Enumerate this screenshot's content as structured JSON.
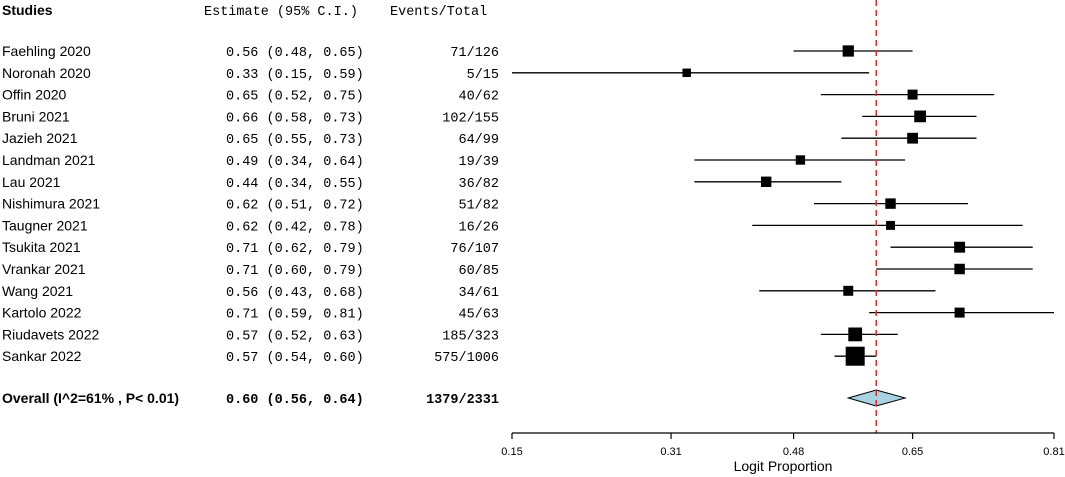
{
  "headers": {
    "studies": "Studies",
    "estimate": "Estimate (95% C.I.)",
    "events": "Events/Total"
  },
  "chart_data": {
    "type": "forest",
    "studies": [
      {
        "label": "Faehling 2020",
        "ci_text": "0.56 (0.48, 0.65)",
        "events": "71/126",
        "estimate": 0.56,
        "lower": 0.48,
        "upper": 0.65,
        "weight": 126
      },
      {
        "label": "Noronah 2020",
        "ci_text": "0.33 (0.15, 0.59)",
        "events": "5/15",
        "estimate": 0.33,
        "lower": 0.15,
        "upper": 0.59,
        "weight": 15
      },
      {
        "label": "Offin 2020",
        "ci_text": "0.65 (0.52, 0.75)",
        "events": "40/62",
        "estimate": 0.65,
        "lower": 0.52,
        "upper": 0.75,
        "weight": 62
      },
      {
        "label": "Bruni 2021",
        "ci_text": "0.66 (0.58, 0.73)",
        "events": "102/155",
        "estimate": 0.66,
        "lower": 0.58,
        "upper": 0.73,
        "weight": 155
      },
      {
        "label": "Jazieh 2021",
        "ci_text": "0.65 (0.55, 0.73)",
        "events": "64/99",
        "estimate": 0.65,
        "lower": 0.55,
        "upper": 0.73,
        "weight": 99
      },
      {
        "label": "Landman 2021",
        "ci_text": "0.49 (0.34, 0.64)",
        "events": "19/39",
        "estimate": 0.49,
        "lower": 0.34,
        "upper": 0.64,
        "weight": 39
      },
      {
        "label": "Lau 2021",
        "ci_text": "0.44 (0.34, 0.55)",
        "events": "36/82",
        "estimate": 0.44,
        "lower": 0.34,
        "upper": 0.55,
        "weight": 82
      },
      {
        "label": "Nishimura 2021",
        "ci_text": "0.62 (0.51, 0.72)",
        "events": "51/82",
        "estimate": 0.62,
        "lower": 0.51,
        "upper": 0.72,
        "weight": 82
      },
      {
        "label": "Taugner 2021",
        "ci_text": "0.62 (0.42, 0.78)",
        "events": "16/26",
        "estimate": 0.62,
        "lower": 0.42,
        "upper": 0.78,
        "weight": 26
      },
      {
        "label": "Tsukita 2021",
        "ci_text": "0.71 (0.62, 0.79)",
        "events": "76/107",
        "estimate": 0.71,
        "lower": 0.62,
        "upper": 0.79,
        "weight": 107
      },
      {
        "label": "Vrankar 2021",
        "ci_text": "0.71 (0.60, 0.79)",
        "events": "60/85",
        "estimate": 0.71,
        "lower": 0.6,
        "upper": 0.79,
        "weight": 85
      },
      {
        "label": "Wang 2021",
        "ci_text": "0.56 (0.43, 0.68)",
        "events": "34/61",
        "estimate": 0.56,
        "lower": 0.43,
        "upper": 0.68,
        "weight": 61
      },
      {
        "label": "Kartolo 2022",
        "ci_text": "0.71 (0.59, 0.81)",
        "events": "45/63",
        "estimate": 0.71,
        "lower": 0.59,
        "upper": 0.81,
        "weight": 63
      },
      {
        "label": "Riudavets 2022",
        "ci_text": "0.57 (0.52, 0.63)",
        "events": "185/323",
        "estimate": 0.57,
        "lower": 0.52,
        "upper": 0.63,
        "weight": 323
      },
      {
        "label": "Sankar 2022",
        "ci_text": "0.57 (0.54, 0.60)",
        "events": "575/1006",
        "estimate": 0.57,
        "lower": 0.54,
        "upper": 0.6,
        "weight": 1006
      }
    ],
    "overall": {
      "label": "Overall (I^2=61% , P< 0.01)",
      "ci_text": "0.60 (0.56, 0.64)",
      "events": "1379/2331",
      "estimate": 0.6,
      "lower": 0.56,
      "upper": 0.64
    },
    "reference_line": 0.6,
    "xlabel": "Logit Proportion",
    "xticks": [
      "0.15",
      "0.31",
      "0.48",
      "0.65",
      "0.81"
    ],
    "xlim": [
      0.15,
      0.81
    ],
    "scale": "logit",
    "colors": {
      "reference_line": "#e8262b",
      "diamond_fill": "#a9d3e0",
      "marker": "#000000"
    }
  }
}
